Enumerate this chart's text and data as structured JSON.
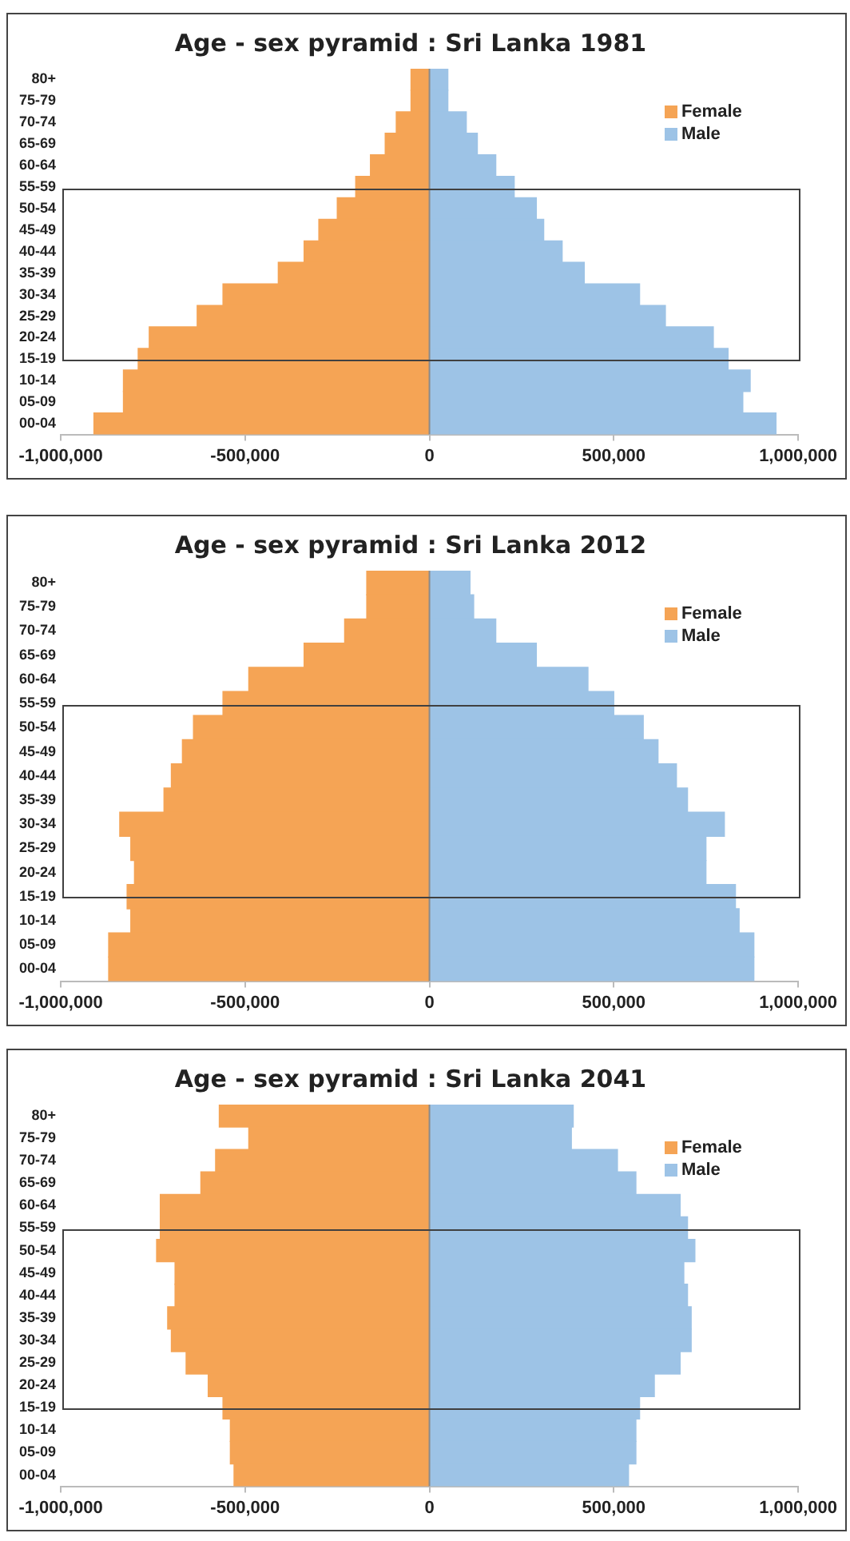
{
  "chart_data": [
    {
      "type": "bar",
      "title": "Age - sex pyramid : Sri Lanka 1981",
      "orientation": "horizontal",
      "stacked": true,
      "categories": [
        "80+",
        "75-79",
        "70-74",
        "65-69",
        "60-64",
        "55-59",
        "50-54",
        "45-49",
        "40-44",
        "35-39",
        "30-34",
        "25-29",
        "20-24",
        "15-19",
        "10-14",
        "05-09",
        "00-04"
      ],
      "series": [
        {
          "name": "Female",
          "color": "#f5a455",
          "values": [
            -50000,
            -50000,
            -90000,
            -120000,
            -160000,
            -200000,
            -250000,
            -300000,
            -340000,
            -410000,
            -560000,
            -630000,
            -760000,
            -790000,
            -830000,
            -830000,
            -910000
          ]
        },
        {
          "name": "Male",
          "color": "#9dc3e6",
          "values": [
            50000,
            50000,
            100000,
            130000,
            180000,
            230000,
            290000,
            310000,
            360000,
            420000,
            570000,
            640000,
            770000,
            810000,
            870000,
            850000,
            940000
          ]
        }
      ],
      "xlim": [
        -1000000,
        1000000
      ],
      "xticks": [
        {
          "value": -1000000,
          "label": "-1,000,000"
        },
        {
          "value": -500000,
          "label": "-500,000"
        },
        {
          "value": 0,
          "label": "0"
        },
        {
          "value": 500000,
          "label": "500,000"
        },
        {
          "value": 1000000,
          "label": "1,000,000"
        }
      ],
      "legend": "top right"
    },
    {
      "type": "bar",
      "title": "Age - sex pyramid : Sri Lanka 2012",
      "orientation": "horizontal",
      "stacked": true,
      "categories": [
        "80+",
        "75-79",
        "70-74",
        "65-69",
        "60-64",
        "55-59",
        "50-54",
        "45-49",
        "40-44",
        "35-39",
        "30-34",
        "25-29",
        "20-24",
        "15-19",
        "10-14",
        "05-09",
        "00-04"
      ],
      "series": [
        {
          "name": "Female",
          "color": "#f5a455",
          "values": [
            -170000,
            -170000,
            -230000,
            -340000,
            -490000,
            -560000,
            -640000,
            -670000,
            -700000,
            -720000,
            -840000,
            -810000,
            -800000,
            -820000,
            -810000,
            -870000,
            -870000
          ]
        },
        {
          "name": "Male",
          "color": "#9dc3e6",
          "values": [
            110000,
            120000,
            180000,
            290000,
            430000,
            500000,
            580000,
            620000,
            670000,
            700000,
            800000,
            750000,
            750000,
            830000,
            840000,
            880000,
            880000
          ]
        }
      ],
      "xlim": [
        -1000000,
        1000000
      ],
      "xticks": [
        {
          "value": -1000000,
          "label": "-1,000,000"
        },
        {
          "value": -500000,
          "label": "-500,000"
        },
        {
          "value": 0,
          "label": "0"
        },
        {
          "value": 500000,
          "label": "500,000"
        },
        {
          "value": 1000000,
          "label": "1,000,000"
        }
      ],
      "legend": "top right"
    },
    {
      "type": "bar",
      "title": "Age - sex pyramid : Sri Lanka 2041",
      "orientation": "horizontal",
      "stacked": true,
      "categories": [
        "80+",
        "75-79",
        "70-74",
        "65-69",
        "60-64",
        "55-59",
        "50-54",
        "45-49",
        "40-44",
        "35-39",
        "30-34",
        "25-29",
        "20-24",
        "15-19",
        "10-14",
        "05-09",
        "00-04"
      ],
      "series": [
        {
          "name": "Female",
          "color": "#f5a455",
          "values": [
            -570000,
            -490000,
            -580000,
            -620000,
            -730000,
            -730000,
            -740000,
            -690000,
            -690000,
            -710000,
            -700000,
            -660000,
            -600000,
            -560000,
            -540000,
            -540000,
            -530000
          ]
        },
        {
          "name": "Male",
          "color": "#9dc3e6",
          "values": [
            390000,
            385000,
            510000,
            560000,
            680000,
            700000,
            720000,
            690000,
            700000,
            710000,
            710000,
            680000,
            610000,
            570000,
            560000,
            560000,
            540000
          ]
        }
      ],
      "xlim": [
        -1000000,
        1000000
      ],
      "xticks": [
        {
          "value": -1000000,
          "label": "-1,000,000"
        },
        {
          "value": -500000,
          "label": "-500,000"
        },
        {
          "value": 0,
          "label": "0"
        },
        {
          "value": 500000,
          "label": "500,000"
        },
        {
          "value": 1000000,
          "label": "1,000,000"
        }
      ],
      "legend": "top right"
    }
  ]
}
